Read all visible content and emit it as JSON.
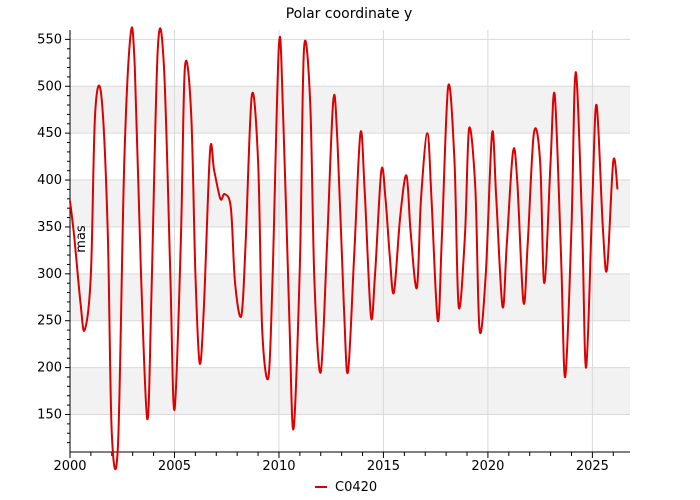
{
  "chart_data": {
    "type": "line",
    "title": "Polar coordinate y",
    "xlabel": "",
    "ylabel": "mas",
    "xlim": [
      2000,
      2026.8
    ],
    "ylim": [
      110,
      560
    ],
    "x_ticks": [
      2000,
      2005,
      2010,
      2015,
      2020,
      2025
    ],
    "y_ticks": [
      150,
      200,
      250,
      300,
      350,
      400,
      450,
      500,
      550
    ],
    "grid": true,
    "alternating_bands": true,
    "legend_position": "bottom-center",
    "colors": {
      "series": "#dd0000",
      "band": "#f2f2f2",
      "grid": "#d9d9d9"
    },
    "series": [
      {
        "name": "C0420",
        "x": [
          2000.0,
          2000.2,
          2000.5,
          2000.7,
          2001.0,
          2001.2,
          2001.5,
          2001.8,
          2002.0,
          2002.3,
          2002.6,
          2002.9,
          2003.1,
          2003.4,
          2003.7,
          2003.9,
          2004.2,
          2004.5,
          2004.8,
          2005.0,
          2005.3,
          2005.5,
          2005.8,
          2006.0,
          2006.2,
          2006.4,
          2006.7,
          2006.9,
          2007.2,
          2007.4,
          2007.7,
          2007.9,
          2008.2,
          2008.4,
          2008.7,
          2009.0,
          2009.2,
          2009.5,
          2009.7,
          2010.0,
          2010.2,
          2010.5,
          2010.7,
          2011.0,
          2011.2,
          2011.5,
          2011.7,
          2012.0,
          2012.3,
          2012.6,
          2012.8,
          2013.1,
          2013.3,
          2013.6,
          2013.9,
          2014.1,
          2014.4,
          2014.6,
          2014.9,
          2015.1,
          2015.3,
          2015.5,
          2015.8,
          2016.1,
          2016.3,
          2016.6,
          2016.8,
          2017.1,
          2017.3,
          2017.6,
          2017.8,
          2018.1,
          2018.4,
          2018.6,
          2018.9,
          2019.1,
          2019.4,
          2019.6,
          2019.9,
          2020.2,
          2020.4,
          2020.7,
          2020.9,
          2021.2,
          2021.4,
          2021.7,
          2021.9,
          2022.2,
          2022.5,
          2022.7,
          2023.0,
          2023.2,
          2023.5,
          2023.7,
          2024.0,
          2024.2,
          2024.5,
          2024.7,
          2025.0,
          2025.2,
          2025.5,
          2025.7,
          2026.0,
          2026.2
        ],
        "y": [
          378,
          340,
          270,
          240,
          300,
          470,
          490,
          350,
          130,
          120,
          420,
          555,
          520,
          300,
          145,
          280,
          540,
          520,
          300,
          155,
          330,
          520,
          470,
          300,
          205,
          260,
          430,
          410,
          380,
          385,
          370,
          290,
          255,
          330,
          490,
          420,
          240,
          190,
          300,
          545,
          470,
          250,
          135,
          310,
          540,
          480,
          290,
          195,
          330,
          485,
          440,
          270,
          195,
          320,
          450,
          390,
          255,
          300,
          410,
          380,
          320,
          280,
          360,
          405,
          345,
          285,
          380,
          450,
          380,
          250,
          340,
          500,
          420,
          265,
          340,
          455,
          390,
          240,
          300,
          450,
          380,
          265,
          330,
          430,
          400,
          270,
          330,
          450,
          420,
          290,
          420,
          490,
          320,
          190,
          350,
          515,
          360,
          200,
          380,
          480,
          350,
          305,
          420,
          390
        ]
      }
    ]
  }
}
